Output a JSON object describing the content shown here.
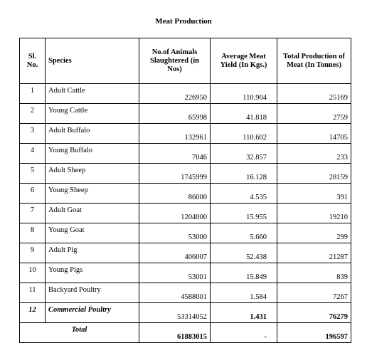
{
  "title": "Meat Production",
  "headers": {
    "sl": "Sl. No.",
    "species": "Species",
    "animals": "No.of Animals Slaughtered (in Nos)",
    "yield": "Average Meat Yield (In Kgs.)",
    "total": "Total Production of Meat (In Tonnes)"
  },
  "rows": [
    {
      "sl": "1",
      "species": "Adult Cattle",
      "animals": "226950",
      "yield": "110.904",
      "total": "25169"
    },
    {
      "sl": "2",
      "species": "Young Cattle",
      "animals": "65998",
      "yield": "41.818",
      "total": "2759"
    },
    {
      "sl": "3",
      "species": "Adult Buffalo",
      "animals": "132961",
      "yield": "110.602",
      "total": "14705"
    },
    {
      "sl": "4",
      "species": "Young Buffalo",
      "animals": "7046",
      "yield": "32.857",
      "total": "233"
    },
    {
      "sl": "5",
      "species": "Adult Sheep",
      "animals": "1745999",
      "yield": "16.128",
      "total": "28159"
    },
    {
      "sl": "6",
      "species": "Young Sheep",
      "animals": "86000",
      "yield": "4.535",
      "total": "391"
    },
    {
      "sl": "7",
      "species": "Adult Goat",
      "animals": "1204000",
      "yield": "15.955",
      "total": "19210"
    },
    {
      "sl": "8",
      "species": "Young Goat",
      "animals": "53000",
      "yield": "5.660",
      "total": "299"
    },
    {
      "sl": "9",
      "species": "Adult Pig",
      "animals": "406007",
      "yield": "52.438",
      "total": "21287"
    },
    {
      "sl": "10",
      "species": "Young Pigs",
      "animals": "53001",
      "yield": "15.849",
      "total": "839"
    },
    {
      "sl": "11",
      "species": "Backyard Poultry",
      "animals": "4588001",
      "yield": "1.584",
      "total": "7267"
    },
    {
      "sl": "12",
      "species": "Commercial Poultry",
      "animals": "53314052",
      "yield": "1.431",
      "total": "76279"
    }
  ],
  "totals": {
    "label": "Total",
    "animals": "61883015",
    "yield": "-",
    "total": "196597"
  }
}
